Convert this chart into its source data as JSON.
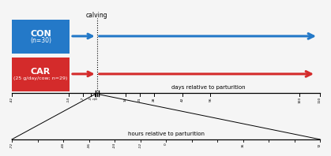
{
  "calving_label": "calving",
  "con_label": "CON",
  "con_sublabel": "(n=30)",
  "car_label": "CAR",
  "car_sublabel": "(25 g/day/cow; n=29)",
  "con_color": "#2479C8",
  "car_color": "#D42B2B",
  "days_label": "days relative to parturition",
  "hours_label": "hours relative to parturition",
  "days_ticks": [
    -42,
    -14,
    -7,
    -3,
    -1,
    0,
    14,
    21,
    28,
    42,
    56,
    100,
    110
  ],
  "hours_ticks_labeled": [
    -72,
    -48,
    -36,
    -24,
    -12,
    0,
    36,
    72
  ],
  "hours_ticks_all": [
    -72,
    -60,
    -48,
    -36,
    -24,
    -12,
    0,
    12,
    24,
    36,
    48,
    60,
    72
  ],
  "days_min": -42,
  "days_max": 110,
  "hours_min": -72,
  "hours_max": 72,
  "bg_color": "#f5f5f5"
}
